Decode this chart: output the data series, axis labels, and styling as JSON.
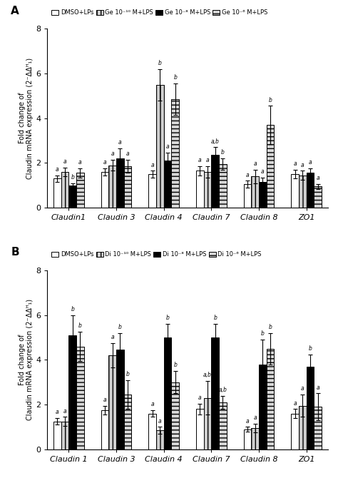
{
  "panel_A": {
    "title": "A",
    "legend_labels": [
      "DMSO+LPs",
      "Ge 10⁻¹⁰ M+LPS",
      "Ge 10⁻⁸ M+LPS",
      "Ge 10⁻⁶ M+LPS"
    ],
    "categories": [
      "Claudin1",
      "Claudin 3",
      "Claudin 4",
      "Claudin 7",
      "Claudin 8",
      "ZO1"
    ],
    "values": [
      [
        1.3,
        1.6,
        1.0,
        1.55
      ],
      [
        1.6,
        1.9,
        2.2,
        1.85
      ],
      [
        1.5,
        5.5,
        2.1,
        4.85
      ],
      [
        1.65,
        1.6,
        2.35,
        1.95
      ],
      [
        1.05,
        1.4,
        1.15,
        3.7
      ],
      [
        1.5,
        1.45,
        1.55,
        0.95
      ]
    ],
    "errors": [
      [
        0.15,
        0.2,
        0.1,
        0.2
      ],
      [
        0.15,
        0.25,
        0.45,
        0.3
      ],
      [
        0.15,
        0.7,
        0.35,
        0.7
      ],
      [
        0.2,
        0.25,
        0.35,
        0.25
      ],
      [
        0.15,
        0.3,
        0.2,
        0.85
      ],
      [
        0.2,
        0.2,
        0.2,
        0.12
      ]
    ],
    "annotations": [
      [
        "a",
        "a",
        "b",
        "a"
      ],
      [
        "a",
        "a",
        "a",
        "a"
      ],
      [
        "a",
        "b",
        "a",
        "b"
      ],
      [
        "a",
        "a",
        "a,b",
        "b"
      ],
      [
        "a",
        "a",
        "a",
        "b"
      ],
      [
        "a",
        "a",
        "a",
        "a"
      ]
    ],
    "ylabel": "Fold change of\nClaudin mRNA expression (2⁻ΔΔᴴ₁)"
  },
  "panel_B": {
    "title": "B",
    "legend_labels": [
      "DMSO+LPs",
      "Di 10⁻¹⁰ M+LPS",
      "Di 10⁻⁸ M+LPS",
      "Di 10⁻⁶ M+LPS"
    ],
    "categories": [
      "Claudin 1",
      "Claudin 3",
      "Claudin 4",
      "Claudin 7",
      "Claudin 8",
      "ZO1"
    ],
    "values": [
      [
        1.25,
        1.25,
        5.1,
        4.6
      ],
      [
        1.75,
        4.2,
        4.45,
        2.45
      ],
      [
        1.6,
        0.85,
        5.0,
        3.0
      ],
      [
        1.8,
        2.3,
        5.0,
        2.1
      ],
      [
        0.9,
        0.95,
        3.8,
        4.5
      ],
      [
        1.6,
        1.95,
        3.7,
        1.9
      ]
    ],
    "errors": [
      [
        0.15,
        0.2,
        0.9,
        0.65
      ],
      [
        0.2,
        0.55,
        0.75,
        0.65
      ],
      [
        0.15,
        0.15,
        0.6,
        0.5
      ],
      [
        0.25,
        0.75,
        0.6,
        0.3
      ],
      [
        0.1,
        0.2,
        1.1,
        0.7
      ],
      [
        0.2,
        0.5,
        0.55,
        0.6
      ]
    ],
    "annotations": [
      [
        "a",
        "a",
        "b",
        "b"
      ],
      [
        "a",
        "a",
        "b",
        "b"
      ],
      [
        "a",
        "a",
        "b",
        "b"
      ],
      [
        "a",
        "a,b",
        "b",
        "a,b"
      ],
      [
        "a",
        "a",
        "b",
        "b"
      ],
      [
        "a",
        "a",
        "b",
        "a"
      ]
    ],
    "ylabel": "Fold change of\nClaudin mRNA expression (2⁻ΔΔᴴ₁)"
  },
  "ylim": [
    0,
    8
  ],
  "yticks": [
    0,
    2,
    4,
    6,
    8
  ],
  "bar_width": 0.16,
  "figsize": [
    4.74,
    6.7
  ],
  "dpi": 100
}
